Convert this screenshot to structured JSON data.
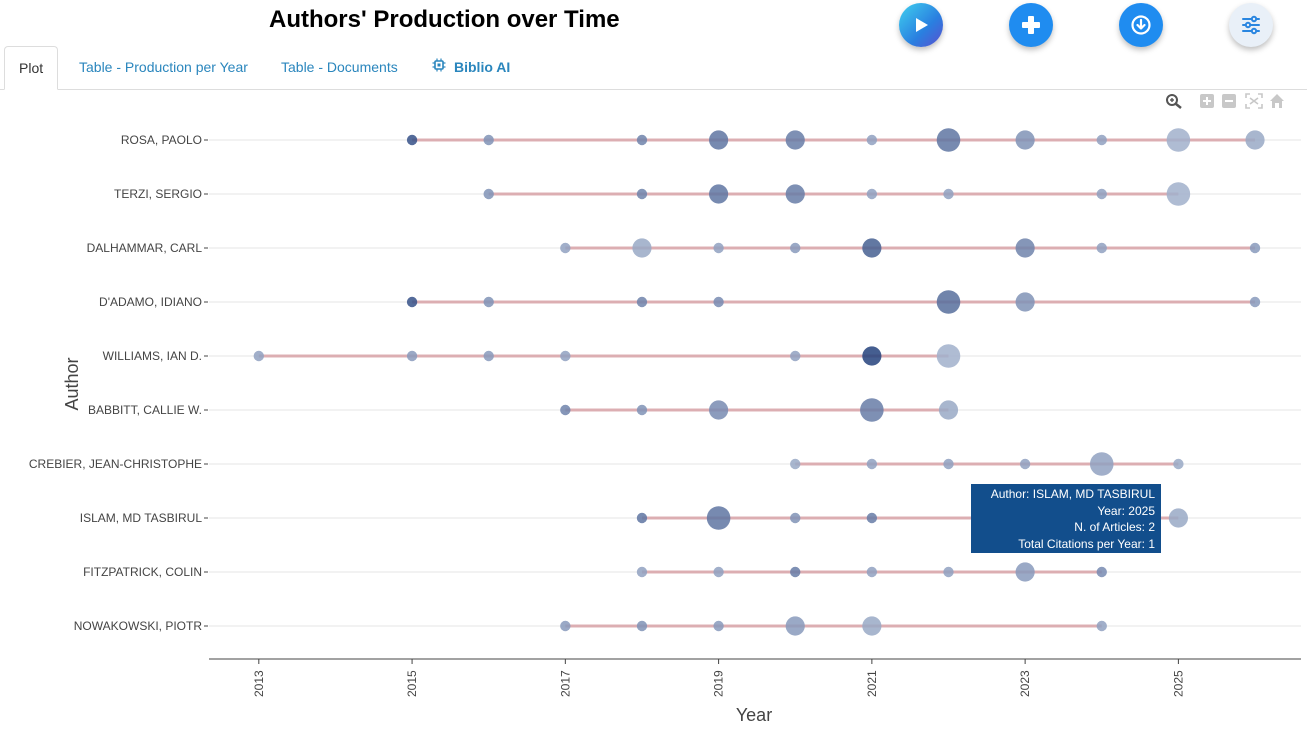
{
  "title": "Authors' Production over Time",
  "toolbar": {
    "play_icon": "play-icon",
    "add_icon": "plus-icon",
    "download_icon": "download-icon",
    "settings_icon": "sliders-icon"
  },
  "tabs": [
    {
      "label": "Plot",
      "active": true
    },
    {
      "label": "Table - Production per Year",
      "active": false
    },
    {
      "label": "Table - Documents",
      "active": false
    },
    {
      "label": "Biblio AI",
      "active": false,
      "icon": "chip-icon"
    }
  ],
  "colors": {
    "line": "#d9a3a8",
    "point_dark": "#1f3d7a",
    "point_light": "#b8c6db",
    "grid": "#e6e6e6",
    "tooltip_bg": "#124e8c",
    "tab_link": "#2a86bd"
  },
  "chart_data": {
    "type": "scatter",
    "title": "Authors' Production over Time",
    "xlabel": "Year",
    "ylabel": "Author",
    "xlim": [
      2012.35,
      2026.6
    ],
    "xticks": [
      2013,
      2015,
      2017,
      2019,
      2021,
      2023,
      2025
    ],
    "authors": [
      {
        "name": "ROSA, PAOLO",
        "points": [
          {
            "year": 2015,
            "size": 1,
            "intensity": 0.85
          },
          {
            "year": 2016,
            "size": 1,
            "intensity": 0.4
          },
          {
            "year": 2018,
            "size": 1,
            "intensity": 0.5
          },
          {
            "year": 2019,
            "size": 3,
            "intensity": 0.6
          },
          {
            "year": 2020,
            "size": 3,
            "intensity": 0.55
          },
          {
            "year": 2021,
            "size": 1,
            "intensity": 0.3
          },
          {
            "year": 2022,
            "size": 4,
            "intensity": 0.6
          },
          {
            "year": 2023,
            "size": 3,
            "intensity": 0.4
          },
          {
            "year": 2024,
            "size": 1,
            "intensity": 0.3
          },
          {
            "year": 2025,
            "size": 4,
            "intensity": 0.2
          },
          {
            "year": 2026,
            "size": 3,
            "intensity": 0.25
          }
        ]
      },
      {
        "name": "TERZI, SERGIO",
        "points": [
          {
            "year": 2016,
            "size": 1,
            "intensity": 0.4
          },
          {
            "year": 2018,
            "size": 1,
            "intensity": 0.5
          },
          {
            "year": 2019,
            "size": 3,
            "intensity": 0.6
          },
          {
            "year": 2020,
            "size": 3,
            "intensity": 0.55
          },
          {
            "year": 2021,
            "size": 1,
            "intensity": 0.3
          },
          {
            "year": 2022,
            "size": 1,
            "intensity": 0.3
          },
          {
            "year": 2024,
            "size": 1,
            "intensity": 0.3
          },
          {
            "year": 2025,
            "size": 4,
            "intensity": 0.2
          }
        ]
      },
      {
        "name": "DALHAMMAR, CARL",
        "points": [
          {
            "year": 2017,
            "size": 1,
            "intensity": 0.3
          },
          {
            "year": 2018,
            "size": 3,
            "intensity": 0.25
          },
          {
            "year": 2019,
            "size": 1,
            "intensity": 0.3
          },
          {
            "year": 2020,
            "size": 1,
            "intensity": 0.35
          },
          {
            "year": 2021,
            "size": 3,
            "intensity": 0.75
          },
          {
            "year": 2023,
            "size": 3,
            "intensity": 0.5
          },
          {
            "year": 2024,
            "size": 1,
            "intensity": 0.3
          },
          {
            "year": 2026,
            "size": 1,
            "intensity": 0.35
          }
        ]
      },
      {
        "name": "D'ADAMO, IDIANO",
        "points": [
          {
            "year": 2015,
            "size": 1,
            "intensity": 0.85
          },
          {
            "year": 2016,
            "size": 1,
            "intensity": 0.4
          },
          {
            "year": 2018,
            "size": 1,
            "intensity": 0.5
          },
          {
            "year": 2019,
            "size": 1,
            "intensity": 0.45
          },
          {
            "year": 2022,
            "size": 4,
            "intensity": 0.65
          },
          {
            "year": 2023,
            "size": 3,
            "intensity": 0.4
          },
          {
            "year": 2026,
            "size": 1,
            "intensity": 0.35
          }
        ]
      },
      {
        "name": "WILLIAMS, IAN D.",
        "points": [
          {
            "year": 2013,
            "size": 1,
            "intensity": 0.3
          },
          {
            "year": 2015,
            "size": 1,
            "intensity": 0.35
          },
          {
            "year": 2016,
            "size": 1,
            "intensity": 0.35
          },
          {
            "year": 2017,
            "size": 1,
            "intensity": 0.3
          },
          {
            "year": 2020,
            "size": 1,
            "intensity": 0.3
          },
          {
            "year": 2021,
            "size": 3,
            "intensity": 0.95
          },
          {
            "year": 2022,
            "size": 4,
            "intensity": 0.2
          }
        ]
      },
      {
        "name": "BABBITT, CALLIE W.",
        "points": [
          {
            "year": 2017,
            "size": 1,
            "intensity": 0.5
          },
          {
            "year": 2018,
            "size": 1,
            "intensity": 0.4
          },
          {
            "year": 2019,
            "size": 3,
            "intensity": 0.45
          },
          {
            "year": 2021,
            "size": 4,
            "intensity": 0.55
          },
          {
            "year": 2022,
            "size": 3,
            "intensity": 0.25
          }
        ]
      },
      {
        "name": "CREBIER, JEAN-CHRISTOPHE",
        "points": [
          {
            "year": 2020,
            "size": 1,
            "intensity": 0.25
          },
          {
            "year": 2021,
            "size": 1,
            "intensity": 0.3
          },
          {
            "year": 2022,
            "size": 1,
            "intensity": 0.3
          },
          {
            "year": 2023,
            "size": 1,
            "intensity": 0.3
          },
          {
            "year": 2024,
            "size": 4,
            "intensity": 0.3
          },
          {
            "year": 2025,
            "size": 1,
            "intensity": 0.25
          }
        ]
      },
      {
        "name": "ISLAM, MD TASBIRUL",
        "points": [
          {
            "year": 2018,
            "size": 1,
            "intensity": 0.6
          },
          {
            "year": 2019,
            "size": 4,
            "intensity": 0.6
          },
          {
            "year": 2020,
            "size": 1,
            "intensity": 0.4
          },
          {
            "year": 2021,
            "size": 1,
            "intensity": 0.55
          },
          {
            "year": 2025,
            "size": 3,
            "intensity": 0.25
          }
        ]
      },
      {
        "name": "FITZPATRICK, COLIN",
        "points": [
          {
            "year": 2018,
            "size": 1,
            "intensity": 0.3
          },
          {
            "year": 2019,
            "size": 1,
            "intensity": 0.3
          },
          {
            "year": 2020,
            "size": 1,
            "intensity": 0.55
          },
          {
            "year": 2021,
            "size": 1,
            "intensity": 0.3
          },
          {
            "year": 2022,
            "size": 1,
            "intensity": 0.3
          },
          {
            "year": 2023,
            "size": 3,
            "intensity": 0.35
          },
          {
            "year": 2024,
            "size": 1,
            "intensity": 0.45
          }
        ]
      },
      {
        "name": "NOWAKOWSKI, PIOTR",
        "points": [
          {
            "year": 2017,
            "size": 1,
            "intensity": 0.35
          },
          {
            "year": 2018,
            "size": 1,
            "intensity": 0.4
          },
          {
            "year": 2019,
            "size": 1,
            "intensity": 0.35
          },
          {
            "year": 2020,
            "size": 3,
            "intensity": 0.35
          },
          {
            "year": 2021,
            "size": 3,
            "intensity": 0.25
          },
          {
            "year": 2024,
            "size": 1,
            "intensity": 0.3
          }
        ]
      }
    ],
    "hover": {
      "author_label": "Author:",
      "author_value": "ISLAM, MD TASBIRUL",
      "year_label": "Year:",
      "year_value": "2025",
      "articles_label": "N. of Articles:",
      "articles_value": "2",
      "citations_label": "Total Citations per Year:",
      "citations_value": "1"
    }
  }
}
